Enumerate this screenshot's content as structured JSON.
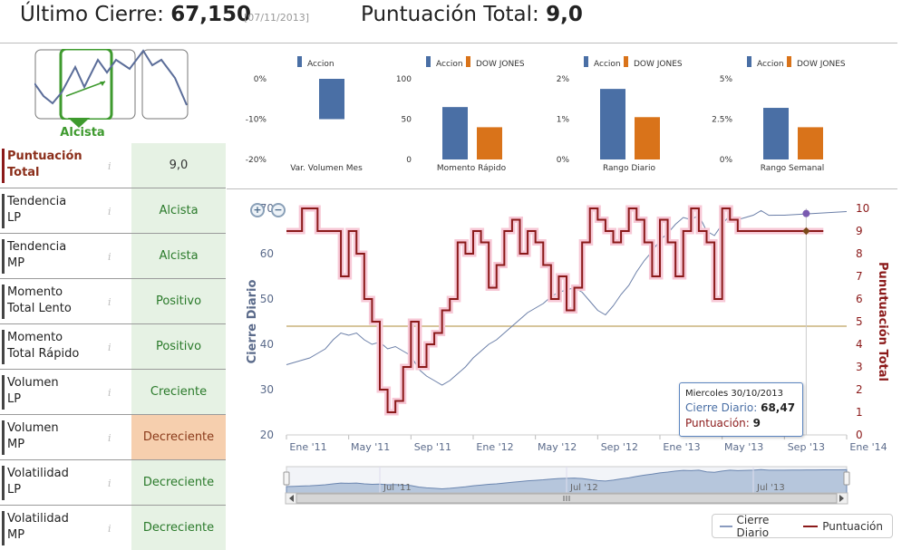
{
  "header": {
    "last_close_label": "Último Cierre:",
    "last_close_value": "67,150",
    "last_close_date": "[07/11/2013]",
    "total_score_label": "Puntuación Total:",
    "total_score_value": "9,0"
  },
  "trend": {
    "label": "Alcista",
    "selected_index": 1
  },
  "score_rows": [
    {
      "label_1": "Puntuación",
      "label_2": "Total",
      "value": "9,0",
      "info_icon": "info-icon",
      "highlight": true
    },
    {
      "label_1": "Tendencia",
      "label_2": "LP",
      "value": "Alcista",
      "info_icon": "info-icon"
    },
    {
      "label_1": "Tendencia",
      "label_2": "MP",
      "value": "Alcista",
      "info_icon": "info-icon"
    },
    {
      "label_1": "Momento",
      "label_2": "Total Lento",
      "value": "Positivo",
      "info_icon": "info-icon"
    },
    {
      "label_1": "Momento",
      "label_2": "Total Rápido",
      "value": "Positivo",
      "info_icon": "info-icon"
    },
    {
      "label_1": "Volumen",
      "label_2": "LP",
      "value": "Creciente",
      "info_icon": "info-icon"
    },
    {
      "label_1": "Volumen",
      "label_2": "MP",
      "value": "Decreciente",
      "info_icon": "info-icon",
      "warning": true
    },
    {
      "label_1": "Volatilidad",
      "label_2": "LP",
      "value": "Decreciente",
      "info_icon": "info-icon"
    },
    {
      "label_1": "Volatilidad",
      "label_2": "MP",
      "value": "Decreciente",
      "info_icon": "info-icon"
    }
  ],
  "colors": {
    "accion": "#4a6fa5",
    "dow_jones": "#d9731a",
    "score_line": "#8b1a1a",
    "close_line": "#6b7fa8",
    "positive_bg": "#e6f2e4",
    "warning_bg": "#f6cfae",
    "trend_green": "#3e9a2e"
  },
  "mini_charts": [
    {
      "type": "bar",
      "title": "Var. Volumen Mes",
      "legend": [
        "Accion"
      ],
      "y_ticks": [
        "0%",
        "-10%",
        "-20%"
      ],
      "ylim": [
        -20,
        0
      ],
      "values": [
        -10
      ]
    },
    {
      "type": "bar",
      "title": "Momento Rápido",
      "legend": [
        "Accion",
        "DOW JONES"
      ],
      "y_ticks": [
        "100",
        "50",
        "0"
      ],
      "ylim": [
        0,
        100
      ],
      "values": [
        65,
        40
      ]
    },
    {
      "type": "bar",
      "title": "Rango Diario",
      "legend": [
        "Accion",
        "DOW JONES"
      ],
      "y_ticks": [
        "2%",
        "1%",
        "0%"
      ],
      "ylim": [
        0,
        2
      ],
      "values": [
        1.75,
        1.05
      ]
    },
    {
      "type": "bar",
      "title": "Rango Semanal",
      "legend": [
        "Accion",
        "DOW JONES"
      ],
      "y_ticks": [
        "5%",
        "2.5%",
        "0%"
      ],
      "ylim": [
        0,
        5
      ],
      "values": [
        3.2,
        2.0
      ]
    }
  ],
  "chart_data": {
    "type": "line",
    "xlabel": "",
    "ylabel": "Cierre Diario",
    "ylabel_right": "Punutuación Total",
    "x_ticks": [
      "Ene '11",
      "May '11",
      "Sep '11",
      "Ene '12",
      "May '12",
      "Sep '12",
      "Ene '13",
      "May '13",
      "Sep '13",
      "Ene '14"
    ],
    "y_ticks_left": [
      "70",
      "60",
      "50",
      "40",
      "30",
      "20"
    ],
    "y_ticks_right": [
      "10",
      "9",
      "8",
      "7",
      "6",
      "5",
      "4",
      "3",
      "2",
      "1",
      "0"
    ],
    "ylim_left": [
      20,
      70
    ],
    "ylim_right": [
      0,
      10
    ],
    "threshold_score": 4.8,
    "series": [
      {
        "name": "Cierre Diario",
        "x": [
          0,
          0.5,
          1,
          1.5,
          2,
          2.5,
          3,
          3.5,
          4,
          4.5,
          5,
          5.5,
          6,
          6.5,
          7,
          7.5,
          8,
          8.5,
          9,
          9.5,
          10,
          10.5,
          11,
          11.5,
          12,
          12.5,
          13,
          13.5,
          14,
          14.5,
          15,
          15.5,
          16,
          16.5,
          17,
          17.5,
          18,
          18.5,
          19,
          19.5,
          20,
          20.5,
          21,
          21.5,
          22,
          22.5,
          23,
          23.5,
          24,
          24.5,
          25,
          25.5,
          26,
          26.5,
          27,
          27.5,
          28,
          28.5,
          29,
          29.5,
          30,
          30.5,
          31,
          31.5,
          32,
          32.5,
          33,
          33.5,
          34,
          34.5,
          35,
          35.5,
          36
        ],
        "values": [
          35.5,
          36,
          36.5,
          37,
          38,
          39,
          41,
          42.5,
          42,
          42.5,
          41,
          40,
          40.5,
          39,
          39.5,
          38.5,
          37.5,
          34.5,
          33,
          32,
          31,
          32,
          33.5,
          35,
          37,
          38.5,
          40,
          41,
          42.5,
          44,
          45.5,
          47,
          48,
          49,
          50.5,
          51.5,
          52,
          52.5,
          51.5,
          49.5,
          47.5,
          46.5,
          48.5,
          51,
          53,
          56,
          58.5,
          60.5,
          63,
          64.5,
          66.5,
          68,
          67.5,
          68.5,
          65,
          64,
          66.5,
          68.5,
          67.5,
          68,
          68.5,
          69.5,
          68.47,
          68.5,
          68.5,
          68.6,
          68.7,
          68.8,
          68.9,
          69,
          69.1,
          69.2,
          69.3
        ]
      },
      {
        "name": "Puntuación",
        "x": [
          0,
          1,
          2,
          3,
          3.5,
          4,
          4.5,
          5,
          5.5,
          6,
          6.5,
          7,
          7.5,
          8,
          8.5,
          9,
          9.5,
          10,
          10.5,
          11,
          11.5,
          12,
          12.5,
          13,
          13.5,
          14,
          14.5,
          15,
          15.5,
          16,
          16.5,
          17,
          17.5,
          18,
          18.5,
          19,
          19.5,
          20,
          20.5,
          21,
          21.5,
          22,
          22.5,
          23,
          23.5,
          24,
          24.5,
          25,
          25.5,
          26,
          26.5,
          27,
          27.5,
          28,
          28.5,
          29,
          29.5,
          30,
          30.5,
          31
        ],
        "values": [
          9,
          10,
          9,
          9,
          7,
          9,
          8,
          6,
          5,
          2,
          1,
          1.5,
          3,
          5,
          3,
          4,
          4.5,
          5.5,
          6,
          8.5,
          8,
          9,
          8.5,
          6.5,
          7.5,
          9,
          9.5,
          8,
          9,
          8.5,
          7.5,
          6,
          7,
          5.5,
          6.5,
          8.5,
          10,
          9.5,
          9,
          8.5,
          9,
          10,
          9.5,
          8.5,
          7,
          9.5,
          8.5,
          7,
          9,
          10,
          9,
          8.5,
          6,
          10,
          9.5,
          9,
          9,
          9,
          9,
          9
        ]
      }
    ],
    "navigator_ticks": [
      "Jul '11",
      "Jul '12",
      "Jul '13"
    ],
    "scroll_icon": "grip-icon"
  },
  "tooltip": {
    "date": "Miercoles 30/10/2013",
    "close_label": "Cierre Diario:",
    "close_value": "68,47",
    "score_label": "Puntuación:",
    "score_value": "9"
  },
  "legend": {
    "close_label": "Cierre Diario",
    "score_label": "Puntuación"
  }
}
